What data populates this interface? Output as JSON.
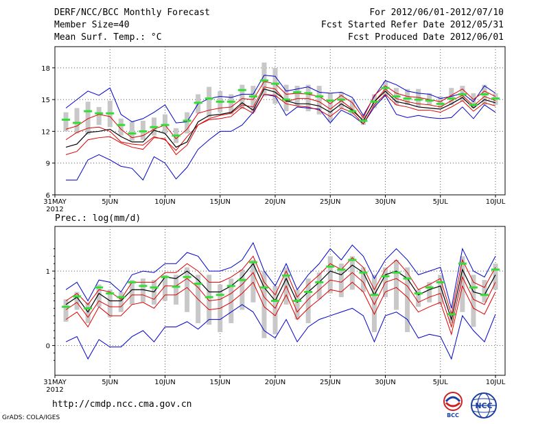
{
  "header": {
    "title": "DERF/NCC/BCC Monthly Forecast",
    "member_size": "Member Size=40",
    "variable": "Mean Surf. Temp.: °C",
    "forecast_period": "For 2012/06/01-2012/07/10",
    "fcst_started": "Fcst Started Refer Date 2012/05/31",
    "fcst_produced": "Fcst Produced Date 2012/06/01"
  },
  "footer": {
    "url": "http://cmdp.ncc.cma.gov.cn",
    "credit": "GrADS: COLA/IGES",
    "logo_bcc": "BCC",
    "logo_ncc": "NCC"
  },
  "colors": {
    "envelope": "#0000cc",
    "spread": "#dd0000",
    "mean": "#000000",
    "box": "#c8c8c8",
    "observed": "#33dd33",
    "grid": "#555555"
  },
  "chart_data": [
    {
      "type": "line",
      "title": "Mean Surf. Temp.: °C",
      "x_tick_labels": [
        "31MAY",
        "5JUN",
        "10JUN",
        "15JUN",
        "20JUN",
        "25JUN",
        "30JUN",
        "5JUL",
        "10JUL"
      ],
      "x_year_label": "2012",
      "x_tick_days": [
        0,
        5,
        10,
        15,
        20,
        25,
        30,
        35,
        40
      ],
      "ylim": [
        6,
        20
      ],
      "y_ticks": [
        6,
        9,
        12,
        15,
        18
      ],
      "y_tick_labels": [
        "6",
        "9",
        "12",
        "15",
        "18"
      ],
      "x": [
        1,
        2,
        3,
        4,
        5,
        6,
        7,
        8,
        9,
        10,
        11,
        12,
        13,
        14,
        15,
        16,
        17,
        18,
        19,
        20,
        21,
        22,
        23,
        24,
        25,
        26,
        27,
        28,
        29,
        30,
        31,
        32,
        33,
        34,
        35,
        36,
        37,
        38,
        39,
        40
      ],
      "series": [
        {
          "name": "max",
          "values": [
            7.4,
            7.4,
            9.3,
            9.8,
            9.3,
            8.7,
            8.5,
            7.4,
            9.6,
            9.0,
            7.5,
            8.6,
            10.3,
            11.2,
            12.0,
            12.0,
            12.6,
            13.8,
            15.5,
            15.3,
            13.5,
            14.3,
            14.2,
            14.1,
            12.8,
            14.0,
            13.5,
            12.7,
            14.3,
            15.4,
            13.6,
            13.3,
            13.5,
            13.3,
            13.2,
            13.3,
            14.3,
            13.2,
            14.5,
            13.8
          ]
        },
        {
          "name": "upper",
          "values": [
            11.2,
            11.9,
            12.3,
            12.4,
            12.0,
            11.0,
            10.8,
            10.7,
            11.5,
            11.2,
            10.2,
            11.5,
            12.6,
            13.2,
            13.5,
            13.7,
            14.5,
            14.3,
            16.2,
            16.0,
            14.8,
            15.1,
            15.1,
            14.8,
            14.1,
            14.9,
            14.1,
            13.0,
            14.8,
            16.0,
            15.1,
            14.8,
            14.6,
            14.5,
            14.3,
            14.9,
            15.4,
            14.4,
            15.3,
            14.9
          ]
        },
        {
          "name": "mean",
          "values": [
            10.5,
            10.8,
            11.9,
            12.0,
            12.2,
            11.5,
            11.0,
            11.0,
            12.1,
            11.8,
            10.5,
            11.0,
            12.9,
            13.5,
            13.6,
            13.8,
            14.7,
            14.0,
            16.0,
            15.7,
            14.9,
            14.6,
            14.6,
            14.4,
            13.8,
            14.6,
            14.0,
            13.0,
            14.8,
            15.8,
            14.8,
            14.6,
            14.3,
            14.2,
            14.1,
            14.6,
            15.2,
            14.2,
            15.0,
            14.7
          ]
        },
        {
          "name": "lower",
          "values": [
            9.8,
            10.1,
            11.2,
            11.4,
            11.5,
            10.9,
            10.5,
            10.3,
            11.4,
            11.3,
            9.8,
            10.7,
            12.6,
            13.1,
            13.2,
            13.4,
            14.3,
            13.7,
            15.5,
            15.4,
            14.6,
            14.4,
            14.3,
            14.0,
            13.4,
            14.2,
            13.8,
            12.7,
            14.5,
            15.5,
            14.5,
            14.3,
            14.0,
            14.0,
            13.8,
            14.3,
            14.9,
            13.9,
            14.7,
            14.4
          ]
        },
        {
          "name": "upper2",
          "values": [
            12.2,
            12.5,
            13.2,
            13.6,
            13.4,
            12.2,
            11.4,
            11.6,
            12.2,
            12.6,
            11.3,
            12.2,
            13.7,
            14.0,
            14.2,
            14.3,
            15.1,
            15.0,
            16.7,
            16.5,
            15.5,
            15.6,
            15.5,
            15.3,
            14.6,
            15.4,
            14.7,
            13.3,
            15.4,
            16.3,
            15.6,
            15.3,
            15.2,
            15.0,
            14.8,
            15.4,
            16.0,
            15.0,
            15.8,
            15.3
          ]
        },
        {
          "name": "min",
          "values": [
            14.2,
            15.0,
            15.8,
            15.4,
            16.1,
            13.6,
            12.9,
            13.2,
            13.8,
            14.5,
            12.8,
            12.9,
            14.6,
            15.1,
            15.3,
            15.2,
            15.5,
            15.5,
            17.3,
            17.2,
            15.8,
            16.0,
            16.2,
            15.7,
            15.6,
            15.7,
            15.2,
            13.5,
            15.3,
            16.8,
            16.4,
            15.8,
            15.6,
            15.5,
            15.1,
            15.3,
            15.6,
            14.8,
            16.3,
            15.6
          ]
        },
        {
          "name": "observed",
          "values": [
            13.1,
            12.8,
            13.9,
            13.7,
            13.7,
            12.6,
            11.8,
            12.0,
            12.4,
            12.6,
            11.6,
            13.0,
            14.7,
            15.1,
            14.8,
            14.8,
            15.9,
            15.3,
            16.8,
            16.5,
            15.0,
            15.7,
            15.6,
            15.3,
            14.9,
            15.0,
            13.9,
            13.0,
            14.8,
            16.1,
            15.3,
            15.1,
            15.0,
            14.9,
            14.6,
            15.1,
            15.5,
            14.5,
            15.5,
            15.1
          ]
        },
        {
          "name": "box_high",
          "values": [
            13.8,
            14.2,
            14.8,
            14.3,
            14.9,
            13.2,
            12.9,
            13.0,
            13.3,
            13.6,
            12.3,
            13.8,
            15.5,
            16.2,
            15.8,
            15.5,
            16.4,
            16.3,
            18.5,
            18.0,
            16.4,
            16.3,
            16.4,
            16.3,
            15.6,
            15.7,
            15.0,
            13.6,
            15.5,
            16.7,
            16.1,
            16.0,
            16.0,
            15.6,
            15.3,
            16.1,
            16.3,
            15.6,
            16.4,
            15.6
          ]
        },
        {
          "name": "box_low",
          "values": [
            12.0,
            11.8,
            11.7,
            12.6,
            12.4,
            11.6,
            11.1,
            11.2,
            11.6,
            11.8,
            10.9,
            11.8,
            13.7,
            13.3,
            13.8,
            13.6,
            14.1,
            13.8,
            15.3,
            14.6,
            13.9,
            14.4,
            13.9,
            13.6,
            12.9,
            14.2,
            13.6,
            12.6,
            14.2,
            15.3,
            14.5,
            14.5,
            14.3,
            14.5,
            14.2,
            14.5,
            14.8,
            14.2,
            14.5,
            14.5
          ]
        }
      ]
    },
    {
      "type": "line",
      "title": "Prec.: log(mm/d)",
      "x_tick_labels": [
        "31MAY",
        "5JUN",
        "10JUN",
        "15JUN",
        "20JUN",
        "25JUN",
        "30JUN",
        "5JUL",
        "10JUL"
      ],
      "x_year_label": "2012",
      "x_tick_days": [
        0,
        5,
        10,
        15,
        20,
        25,
        30,
        35,
        40
      ],
      "ylim": [
        -0.4,
        1.6
      ],
      "y_ticks": [
        0,
        1
      ],
      "y_tick_labels": [
        "0",
        "1"
      ],
      "x": [
        1,
        2,
        3,
        4,
        5,
        6,
        7,
        8,
        9,
        10,
        11,
        12,
        13,
        14,
        15,
        16,
        17,
        18,
        19,
        20,
        21,
        22,
        23,
        24,
        25,
        26,
        27,
        28,
        29,
        30,
        31,
        32,
        33,
        34,
        35,
        36,
        37,
        38,
        39,
        40
      ],
      "series": [
        {
          "name": "max",
          "values": [
            0.75,
            0.85,
            0.6,
            0.88,
            0.85,
            0.72,
            0.95,
            1.0,
            0.98,
            1.1,
            1.1,
            1.25,
            1.2,
            1.0,
            1.0,
            1.05,
            1.15,
            1.38,
            1.0,
            0.8,
            1.1,
            0.75,
            0.95,
            1.1,
            1.3,
            1.15,
            1.35,
            1.2,
            0.9,
            1.15,
            1.3,
            1.15,
            0.95,
            1.0,
            1.05,
            0.5,
            1.3,
            1.0,
            0.92,
            1.2
          ]
        },
        {
          "name": "upper",
          "values": [
            0.6,
            0.7,
            0.55,
            0.75,
            0.72,
            0.62,
            0.85,
            0.85,
            0.85,
            0.98,
            0.98,
            1.1,
            1.0,
            0.85,
            0.85,
            0.92,
            1.02,
            1.2,
            0.85,
            0.68,
            1.0,
            0.65,
            0.82,
            0.95,
            1.1,
            1.02,
            1.18,
            1.05,
            0.75,
            1.02,
            1.15,
            0.98,
            0.75,
            0.82,
            0.9,
            0.42,
            1.15,
            0.85,
            0.78,
            1.05
          ]
        },
        {
          "name": "mean",
          "values": [
            0.55,
            0.65,
            0.45,
            0.7,
            0.6,
            0.6,
            0.75,
            0.75,
            0.72,
            0.92,
            0.9,
            1.0,
            0.88,
            0.72,
            0.72,
            0.8,
            0.92,
            1.1,
            0.78,
            0.6,
            0.9,
            0.58,
            0.72,
            0.85,
            1.0,
            0.95,
            1.08,
            0.98,
            0.68,
            0.95,
            1.0,
            0.9,
            0.68,
            0.75,
            0.8,
            0.35,
            1.02,
            0.72,
            0.68,
            0.95
          ]
        },
        {
          "name": "lower",
          "values": [
            0.48,
            0.58,
            0.38,
            0.6,
            0.52,
            0.52,
            0.68,
            0.68,
            0.62,
            0.8,
            0.8,
            0.9,
            0.78,
            0.6,
            0.62,
            0.7,
            0.82,
            0.98,
            0.65,
            0.5,
            0.8,
            0.45,
            0.62,
            0.75,
            0.88,
            0.85,
            0.98,
            0.85,
            0.55,
            0.85,
            0.9,
            0.8,
            0.58,
            0.65,
            0.7,
            0.25,
            0.92,
            0.62,
            0.55,
            0.85
          ]
        },
        {
          "name": "lower2",
          "values": [
            0.35,
            0.45,
            0.25,
            0.52,
            0.4,
            0.4,
            0.55,
            0.58,
            0.5,
            0.68,
            0.68,
            0.78,
            0.62,
            0.48,
            0.5,
            0.58,
            0.7,
            0.85,
            0.52,
            0.4,
            0.68,
            0.35,
            0.5,
            0.62,
            0.75,
            0.72,
            0.85,
            0.72,
            0.42,
            0.72,
            0.78,
            0.65,
            0.45,
            0.52,
            0.58,
            0.15,
            0.8,
            0.5,
            0.42,
            0.72
          ]
        },
        {
          "name": "min",
          "values": [
            0.05,
            0.12,
            -0.18,
            0.08,
            -0.02,
            -0.02,
            0.12,
            0.2,
            0.05,
            0.25,
            0.25,
            0.32,
            0.22,
            0.35,
            0.35,
            0.45,
            0.55,
            0.45,
            0.2,
            0.1,
            0.35,
            0.05,
            0.25,
            0.35,
            0.4,
            0.45,
            0.5,
            0.4,
            0.05,
            0.4,
            0.45,
            0.35,
            0.1,
            0.15,
            0.12,
            -0.18,
            0.4,
            0.2,
            0.05,
            0.42
          ]
        },
        {
          "name": "observed",
          "values": [
            0.52,
            0.66,
            0.5,
            0.78,
            0.7,
            0.65,
            0.85,
            0.8,
            0.78,
            0.92,
            0.79,
            0.92,
            0.83,
            0.65,
            0.68,
            0.8,
            0.88,
            1.12,
            0.78,
            0.6,
            0.94,
            0.6,
            0.72,
            0.85,
            1.06,
            1.02,
            1.15,
            0.98,
            0.68,
            0.93,
            0.98,
            0.9,
            0.7,
            0.78,
            0.85,
            0.42,
            1.1,
            0.78,
            0.68,
            1.02
          ]
        },
        {
          "name": "box_high",
          "values": [
            0.62,
            0.72,
            0.58,
            0.82,
            0.75,
            0.72,
            0.88,
            0.9,
            0.88,
            0.95,
            0.95,
            1.05,
            0.95,
            0.95,
            0.82,
            0.9,
            1.02,
            1.15,
            1.0,
            0.8,
            1.05,
            0.75,
            0.9,
            0.98,
            1.2,
            1.1,
            1.2,
            1.05,
            0.95,
            1.05,
            1.15,
            1.05,
            0.75,
            0.85,
            0.95,
            0.45,
            1.2,
            0.95,
            0.88,
            1.1
          ]
        },
        {
          "name": "box_low",
          "values": [
            0.32,
            0.48,
            0.3,
            0.52,
            0.38,
            0.45,
            0.55,
            0.58,
            0.55,
            0.6,
            0.55,
            0.45,
            0.3,
            0.28,
            0.18,
            0.3,
            0.48,
            0.58,
            0.1,
            0.15,
            0.55,
            0.35,
            0.3,
            0.62,
            0.7,
            0.65,
            0.75,
            0.72,
            0.18,
            0.65,
            0.48,
            0.18,
            0.52,
            0.58,
            0.55,
            0.3,
            0.45,
            0.25,
            0.58,
            0.75
          ]
        }
      ]
    }
  ]
}
